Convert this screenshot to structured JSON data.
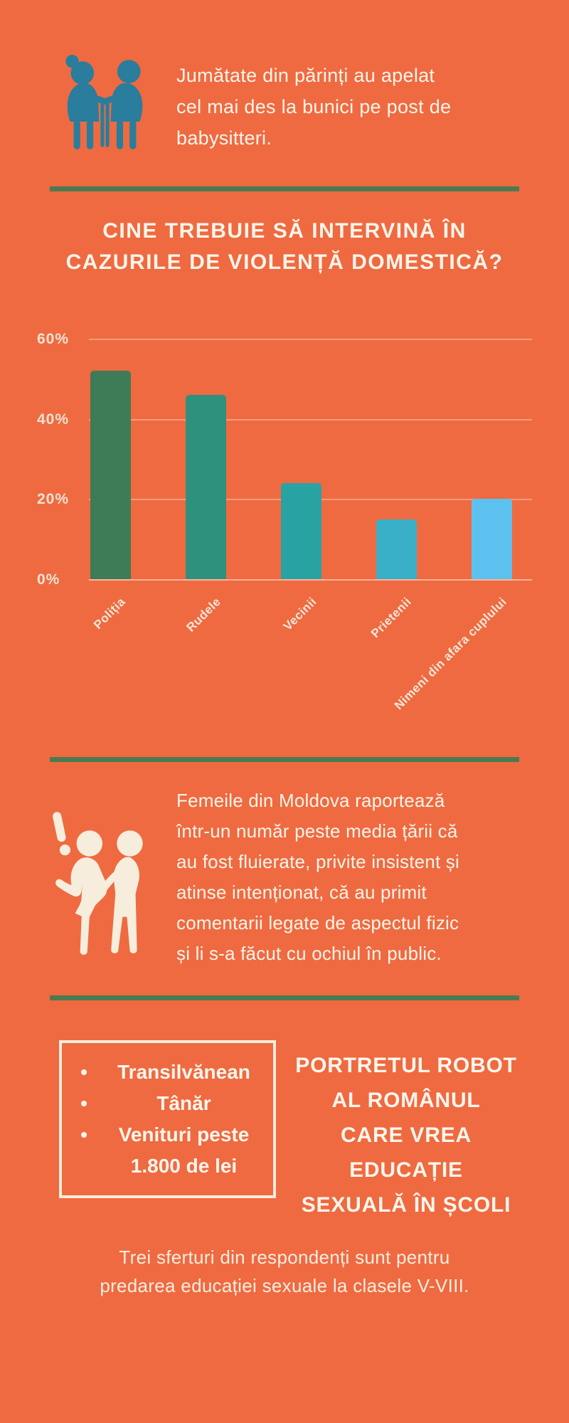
{
  "colors": {
    "background": "#ef6a41",
    "divider_green": "#4b7a52",
    "text_light": "#fdf5ea",
    "tick_cream": "#eee3d2",
    "icon_teal": "#2a7d9c",
    "icon_cream": "#f6eddc"
  },
  "infographic": {
    "babysitters": {
      "icon": "grandparents-icon",
      "text": "Jumătate din părinți au apelat cel mai des la bunici pe post de babysitteri.",
      "lines": [
        "Jumătate din părinți au apelat",
        "cel mai des la bunici pe post de",
        "babysitteri."
      ]
    },
    "harassment": {
      "icon": "harassment-icon",
      "text": "Femeile din Moldova raportează într-un număr peste media țării că au fost fluierate, privite insistent și atinse intenționat, că au primit comentarii legate de aspectul fizic și li s-a făcut cu ochiul în public.",
      "lines": [
        "Femeile din Moldova raportează",
        "într-un număr peste media țării că",
        "au fost fluierate, privite insistent și",
        "atinse intenționat, că au primit",
        "comentarii legate de aspectul fizic",
        "și li s-a făcut cu ochiul în public."
      ]
    },
    "portrait": {
      "bullet_symbol": "•",
      "bullets": [
        "Transilvănean",
        "Tânăr",
        "Venituri peste 1.800 de lei"
      ],
      "heading": "PORTRETUL ROBOT AL ROMÂNUL CARE VREA EDUCAȚIE SEXUALĂ ÎN ȘCOLI",
      "heading_lines": [
        "PORTRETUL ROBOT",
        "AL ROMÂNUL",
        "CARE VREA",
        "EDUCAȚIE",
        "SEXUALĂ ÎN ȘCOLI"
      ]
    },
    "footer": {
      "text": "Trei sferturi din respondenți sunt pentru predarea educației sexuale la clasele V-VIII.",
      "lines": [
        "Trei sferturi din respondenți sunt pentru",
        "predarea educației sexuale la clasele V-VIII."
      ]
    }
  },
  "chart_data": {
    "type": "bar",
    "title": "Cine trebuie să intervină în cazurile de violență domestică?",
    "title_lines": [
      "CINE TREBUIE SĂ INTERVINĂ ÎN",
      "CAZURILE DE VIOLENȚĂ DOMESTICĂ?"
    ],
    "categories": [
      "Poliția",
      "Rudele",
      "Vecinii",
      "Prietenii",
      "Nimeni din afara cuplului"
    ],
    "values": [
      52,
      46,
      24,
      15,
      20
    ],
    "unit": "%",
    "xlabel": "",
    "ylabel": "",
    "ylim": [
      0,
      70
    ],
    "y_ticks": [
      {
        "label": "60%",
        "value": 60
      },
      {
        "label": "40%",
        "value": 40
      },
      {
        "label": "20%",
        "value": 20
      },
      {
        "label": "0%",
        "value": 0
      }
    ],
    "grid": true,
    "legend": false,
    "bar_colors": [
      "#3e7b57",
      "#2e917d",
      "#29a2a3",
      "#39b0c7",
      "#5dc1ef"
    ]
  }
}
